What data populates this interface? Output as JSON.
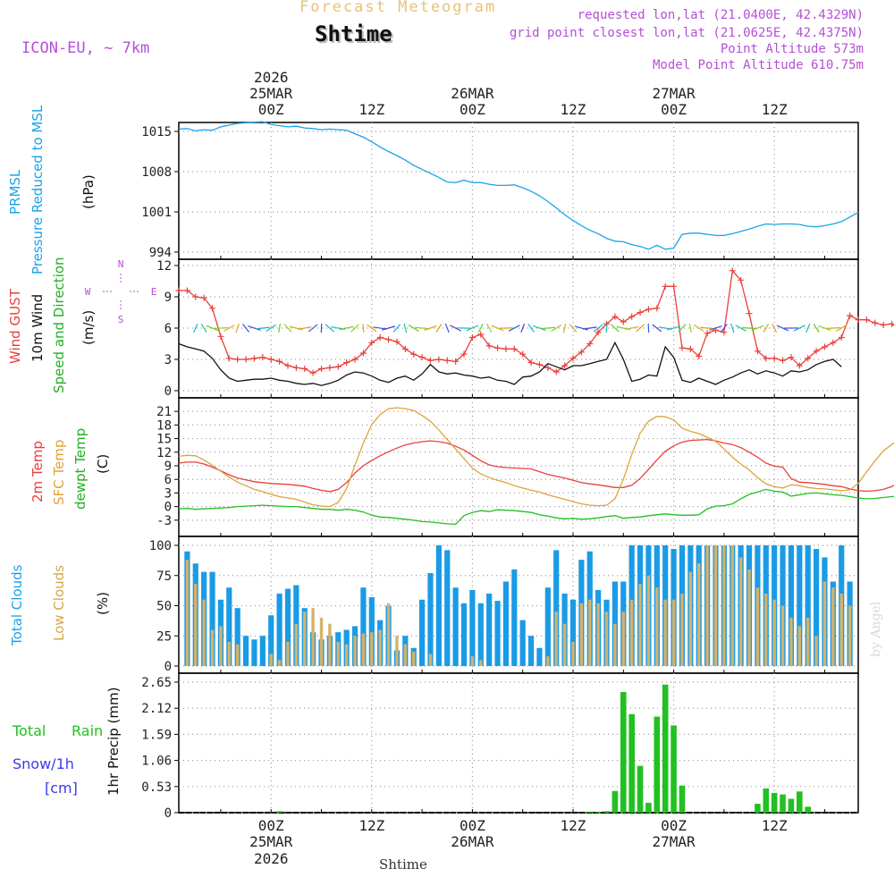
{
  "header": {
    "title": "Forecast Meteogram",
    "station": "Shtime",
    "model": "ICON-EU, ~ 7km",
    "requested": "requested lon,lat (21.0400E, 42.4329N)",
    "gridpoint": "grid point closest lon,lat (21.0625E, 42.4375N)",
    "point_alt": "Point Altitude 573m",
    "model_alt": "Model Point Altitude 610.75m",
    "footer_station": "Shtime",
    "watermark": "by Angel"
  },
  "time_axis": {
    "year_label": "2026",
    "ticks": [
      {
        "hour": 0,
        "label": "00Z",
        "date": "25MAR"
      },
      {
        "hour": 12,
        "label": "12Z",
        "date": ""
      },
      {
        "hour": 24,
        "label": "00Z",
        "date": "26MAR"
      },
      {
        "hour": 36,
        "label": "12Z",
        "date": ""
      },
      {
        "hour": 48,
        "label": "00Z",
        "date": "27MAR"
      },
      {
        "hour": 60,
        "label": "12Z",
        "date": ""
      }
    ]
  },
  "panel_labels": {
    "p1": {
      "a": "PRMSL",
      "b": "Pressure Reduced to MSL",
      "unit": "(hPa)"
    },
    "p2": {
      "a": "Wind GUST",
      "b": "10m Wind",
      "c": "Speed and Direction",
      "unit": "(m/s)",
      "compass_n": "N",
      "compass_s": "S",
      "compass_w": "W",
      "compass_e": "E"
    },
    "p3": {
      "a": "2m Temp",
      "b": "SFC Temp",
      "c": "dewpt Temp",
      "unit": "(C)"
    },
    "p4": {
      "a": "Total Clouds",
      "b": "Low Clouds",
      "unit": "(%)"
    },
    "p5": {
      "a": "Total",
      "b": "Rain",
      "c": "Snow/1h",
      "d": "[cm]",
      "unit": "1hr Precip (mm)"
    }
  },
  "colors": {
    "pressure": "#1aa3e8",
    "gust": "#e8403a",
    "wind": "#111111",
    "temp2m": "#e8403a",
    "sfc": "#e0a23a",
    "dewpt": "#22c022",
    "total_clouds": "#1a9be6",
    "low_clouds": "#d4b26a",
    "rain": "#22c022",
    "snow": "#3a3ae8"
  },
  "chart_data": [
    {
      "type": "line",
      "title": "PRMSL Pressure Reduced to MSL",
      "ylabel": "(hPa)",
      "ylim": [
        994,
        1015
      ],
      "yticks": [
        994,
        1001,
        1008,
        1015
      ],
      "x_start": -11,
      "x_step": 1,
      "values": [
        1015.4,
        1015.5,
        1015.1,
        1015.3,
        1015.2,
        1015.8,
        1016.1,
        1016.4,
        1016.5,
        1016.6,
        1016.7,
        1016.2,
        1016.0,
        1015.8,
        1015.9,
        1015.6,
        1015.5,
        1015.3,
        1015.4,
        1015.3,
        1015.2,
        1014.6,
        1014.0,
        1013.2,
        1012.3,
        1011.5,
        1010.8,
        1010.0,
        1009.1,
        1008.4,
        1007.7,
        1007.0,
        1006.2,
        1006.1,
        1006.5,
        1006.1,
        1006.1,
        1005.8,
        1005.6,
        1005.6,
        1005.7,
        1005.2,
        1004.6,
        1003.8,
        1002.8,
        1001.7,
        1000.5,
        999.5,
        998.6,
        997.8,
        997.2,
        996.4,
        995.9,
        995.8,
        995.3,
        995.0,
        994.5,
        995.2,
        994.5,
        994.7,
        997.1,
        997.3,
        997.3,
        997.1,
        996.9,
        996.9,
        997.2,
        997.6,
        998.0,
        998.5,
        998.9,
        998.8,
        998.9,
        998.9,
        998.8,
        998.5,
        998.4,
        998.6,
        998.9,
        999.3,
        1000.1,
        1000.9
      ]
    },
    {
      "type": "line",
      "title": "Wind GUST / 10m Wind Speed and Direction",
      "ylabel": "(m/s)",
      "ylim": [
        0,
        12
      ],
      "yticks": [
        0,
        3,
        6,
        9,
        12
      ],
      "x_start": -11,
      "x_step": 1,
      "series": [
        {
          "name": "Wind GUST",
          "values": [
            9.6,
            9.6,
            9.0,
            8.9,
            7.9,
            5.2,
            3.1,
            3.0,
            3.0,
            3.1,
            3.2,
            3.0,
            2.8,
            2.4,
            2.2,
            2.1,
            1.7,
            2.1,
            2.2,
            2.3,
            2.7,
            3.0,
            3.6,
            4.6,
            5.1,
            4.9,
            4.7,
            4.0,
            3.5,
            3.2,
            2.9,
            3.0,
            2.9,
            2.8,
            3.5,
            5.1,
            5.4,
            4.3,
            4.1,
            4.0,
            4.0,
            3.5,
            2.7,
            2.5,
            2.2,
            1.8,
            2.4,
            3.1,
            3.7,
            4.5,
            5.6,
            6.4,
            7.1,
            6.6,
            7.1,
            7.5,
            7.8,
            7.9,
            10.0,
            10.0,
            4.1,
            4.0,
            3.3,
            5.5,
            5.8,
            5.6,
            11.5,
            10.6,
            7.4,
            3.8,
            3.1,
            3.1,
            2.9,
            3.2,
            2.4,
            3.1,
            3.8,
            4.2,
            4.6,
            5.1,
            7.2,
            6.8,
            6.8,
            6.5,
            6.3,
            6.4,
            5.8,
            7.3,
            7.0,
            7.0
          ]
        },
        {
          "name": "10m Wind",
          "values": [
            4.5,
            4.2,
            4.0,
            3.8,
            3.1,
            2.0,
            1.2,
            0.9,
            1.0,
            1.1,
            1.1,
            1.2,
            1.0,
            0.9,
            0.7,
            0.6,
            0.7,
            0.5,
            0.7,
            1.0,
            1.5,
            1.8,
            1.7,
            1.4,
            1.0,
            0.8,
            1.2,
            1.4,
            1.0,
            1.6,
            2.5,
            1.8,
            1.6,
            1.7,
            1.5,
            1.4,
            1.2,
            1.3,
            1.0,
            0.9,
            0.6,
            1.3,
            1.4,
            1.8,
            2.6,
            2.3,
            2.0,
            2.4,
            2.4,
            2.6,
            2.8,
            3.0,
            4.6,
            3.0,
            0.9,
            1.1,
            1.5,
            1.4,
            4.2,
            3.2,
            1.0,
            0.8,
            1.2,
            0.9,
            0.6,
            1.0,
            1.3,
            1.7,
            2.0,
            1.6,
            1.9,
            1.7,
            1.4,
            1.9,
            1.8,
            2.0,
            2.5,
            2.8,
            3.0,
            2.3
          ]
        }
      ]
    },
    {
      "type": "line",
      "title": "2m Temp / SFC Temp / dewpt Temp",
      "ylabel": "(C)",
      "ylim": [
        -5,
        23
      ],
      "yticks": [
        -3,
        0,
        3,
        6,
        9,
        12,
        15,
        18,
        21
      ],
      "x_start": -11,
      "x_step": 1,
      "series": [
        {
          "name": "2m Temp",
          "values": [
            9.6,
            9.8,
            9.8,
            9.4,
            8.7,
            7.9,
            7.0,
            6.3,
            5.9,
            5.5,
            5.3,
            5.1,
            5.0,
            4.9,
            4.7,
            4.5,
            4.0,
            3.6,
            3.3,
            3.8,
            5.3,
            7.4,
            9.0,
            10.2,
            11.2,
            12.1,
            12.9,
            13.6,
            14.0,
            14.3,
            14.5,
            14.3,
            14.0,
            13.3,
            12.5,
            11.3,
            10.1,
            9.2,
            8.8,
            8.6,
            8.5,
            8.4,
            8.3,
            7.7,
            7.1,
            6.7,
            6.3,
            5.8,
            5.3,
            5.0,
            4.8,
            4.5,
            4.2,
            4.2,
            4.7,
            6.2,
            8.2,
            10.3,
            12.2,
            13.4,
            14.2,
            14.6,
            14.7,
            14.8,
            14.5,
            14.0,
            13.7,
            13.0,
            12.0,
            10.9,
            9.6,
            8.9,
            8.7,
            6.2,
            5.4,
            5.3,
            5.1,
            4.9,
            4.6,
            4.4,
            3.9,
            3.5,
            3.4,
            3.5,
            3.8,
            4.4,
            5.5,
            6.4,
            7.3,
            7.9,
            8.4,
            8.7,
            8.6,
            8.3,
            7.8,
            7.3,
            6.5
          ]
        },
        {
          "name": "SFC Temp",
          "values": [
            11.1,
            11.3,
            11.2,
            10.3,
            9.1,
            7.8,
            6.5,
            5.4,
            4.6,
            3.8,
            3.3,
            2.7,
            2.2,
            1.9,
            1.6,
            1.0,
            0.4,
            0.1,
            0.0,
            0.9,
            4.0,
            9.1,
            14.0,
            18.1,
            20.3,
            21.6,
            21.8,
            21.6,
            21.2,
            20.1,
            18.8,
            16.9,
            14.8,
            12.7,
            10.6,
            8.5,
            7.2,
            6.4,
            5.8,
            5.3,
            4.6,
            4.1,
            3.6,
            3.2,
            2.6,
            2.1,
            1.6,
            1.1,
            0.6,
            0.3,
            0.2,
            0.3,
            1.7,
            6.0,
            11.5,
            16.2,
            18.8,
            19.9,
            19.8,
            19.1,
            17.3,
            16.6,
            16.1,
            15.3,
            14.4,
            12.7,
            10.9,
            9.4,
            8.1,
            6.4,
            5.0,
            4.4,
            4.1,
            4.8,
            4.6,
            4.2,
            4.0,
            3.9,
            3.7,
            3.5,
            3.7,
            5.1,
            7.7,
            10.1,
            12.3,
            13.7,
            14.9,
            15.0,
            14.6,
            14.2,
            12.5,
            10.6,
            8.8,
            7.2,
            6.0
          ]
        },
        {
          "name": "dewpt Temp",
          "values": [
            -0.5,
            -0.4,
            -0.6,
            -0.5,
            -0.4,
            -0.3,
            -0.2,
            0.0,
            0.1,
            0.2,
            0.3,
            0.2,
            0.1,
            0.0,
            0.0,
            -0.2,
            -0.4,
            -0.6,
            -0.6,
            -0.8,
            -0.6,
            -0.8,
            -1.2,
            -1.9,
            -2.3,
            -2.4,
            -2.6,
            -2.8,
            -3.0,
            -3.3,
            -3.4,
            -3.6,
            -3.8,
            -3.9,
            -2.0,
            -1.3,
            -0.9,
            -1.1,
            -0.7,
            -0.8,
            -0.9,
            -1.1,
            -1.3,
            -1.8,
            -2.1,
            -2.5,
            -2.7,
            -2.6,
            -2.8,
            -2.7,
            -2.5,
            -2.2,
            -2.0,
            -2.6,
            -2.4,
            -2.3,
            -2.0,
            -1.8,
            -1.6,
            -1.8,
            -1.9,
            -1.9,
            -1.8,
            -0.5,
            0.1,
            0.2,
            0.6,
            1.7,
            2.7,
            3.2,
            3.8,
            3.4,
            3.2,
            2.3,
            2.6,
            2.9,
            3.0,
            2.8,
            2.6,
            2.5,
            2.2,
            1.9,
            1.7,
            1.8,
            2.0,
            2.2,
            2.4,
            2.6,
            2.6,
            2.8,
            2.8,
            2.5,
            2.2,
            2.1,
            1.9,
            1.5,
            1.2
          ]
        }
      ]
    },
    {
      "type": "bar",
      "title": "Total Clouds / Low Clouds",
      "ylabel": "(%)",
      "ylim": [
        0,
        100
      ],
      "yticks": [
        0,
        25,
        50,
        75,
        100
      ],
      "x_start": -11,
      "x_step": 1,
      "series": [
        {
          "name": "Total Clouds",
          "values": [
            98,
            95,
            85,
            78,
            78,
            55,
            65,
            48,
            25,
            22,
            25,
            42,
            60,
            64,
            67,
            48,
            28,
            22,
            25,
            28,
            30,
            33,
            65,
            57,
            38,
            50,
            13,
            25,
            15,
            55,
            77,
            100,
            96,
            65,
            52,
            63,
            52,
            60,
            54,
            70,
            80,
            38,
            25,
            15,
            65,
            96,
            60,
            55,
            88,
            95,
            63,
            55,
            70,
            70,
            100,
            100,
            100,
            100,
            100,
            97,
            100,
            100,
            100,
            100,
            100,
            100,
            100,
            100,
            100,
            100,
            100,
            100,
            100,
            100,
            100,
            100,
            97,
            90,
            70,
            100,
            70,
            73,
            100,
            100,
            100,
            100,
            100,
            100,
            100,
            100,
            100,
            100,
            98
          ]
        },
        {
          "name": "Low Clouds",
          "values": [
            95,
            88,
            68,
            55,
            30,
            33,
            20,
            18,
            0,
            0,
            0,
            10,
            5,
            20,
            35,
            45,
            48,
            40,
            35,
            20,
            18,
            25,
            27,
            28,
            30,
            52,
            25,
            18,
            12,
            0,
            10,
            0,
            0,
            0,
            0,
            8,
            5,
            0,
            0,
            0,
            0,
            0,
            0,
            0,
            8,
            45,
            35,
            20,
            52,
            55,
            52,
            45,
            35,
            45,
            55,
            68,
            75,
            65,
            55,
            55,
            60,
            78,
            85,
            100,
            100,
            100,
            100,
            90,
            80,
            65,
            60,
            55,
            50,
            40,
            33,
            40,
            25,
            70,
            65,
            60,
            50,
            70,
            55,
            60,
            45,
            60,
            45,
            35,
            40,
            25,
            30,
            55,
            65,
            55,
            50
          ]
        }
      ]
    },
    {
      "type": "bar",
      "title": "1hr Precip",
      "ylabel": "1hr Precip (mm)",
      "ylim": [
        0,
        2.65
      ],
      "yticks": [
        0,
        0.53,
        1.06,
        1.59,
        2.12,
        2.65
      ],
      "series": [
        {
          "name": "Total Rain",
          "points": [
            [
              1,
              0.03
            ],
            [
              38,
              0.02
            ],
            [
              39,
              0.02
            ],
            [
              40,
              0.03
            ],
            [
              41,
              0.44
            ],
            [
              42,
              2.45
            ],
            [
              43,
              2.0
            ],
            [
              44,
              0.95
            ],
            [
              45,
              0.2
            ],
            [
              46,
              1.95
            ],
            [
              47,
              2.6
            ],
            [
              48,
              1.77
            ],
            [
              49,
              0.55
            ],
            [
              58,
              0.18
            ],
            [
              59,
              0.49
            ],
            [
              60,
              0.4
            ],
            [
              61,
              0.37
            ],
            [
              62,
              0.28
            ],
            [
              63,
              0.43
            ],
            [
              64,
              0.12
            ]
          ]
        }
      ]
    }
  ]
}
